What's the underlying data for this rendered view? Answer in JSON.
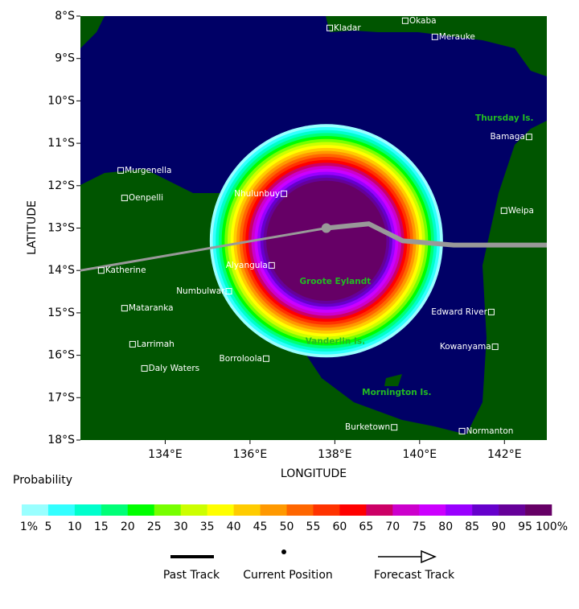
{
  "map": {
    "xlabel": "LONGITUDE",
    "ylabel": "LATITUDE",
    "lon_range": [
      132,
      143
    ],
    "lat_range": [
      8,
      18
    ],
    "xticks": [
      {
        "value": 134,
        "label": "134°E"
      },
      {
        "value": 136,
        "label": "136°E"
      },
      {
        "value": 138,
        "label": "138°E"
      },
      {
        "value": 140,
        "label": "140°E"
      },
      {
        "value": 142,
        "label": "142°E"
      }
    ],
    "yticks": [
      {
        "value": 8,
        "label": "8°S"
      },
      {
        "value": 9,
        "label": "9°S"
      },
      {
        "value": 10,
        "label": "10°S"
      },
      {
        "value": 11,
        "label": "11°S"
      },
      {
        "value": 12,
        "label": "12°S"
      },
      {
        "value": 13,
        "label": "13°S"
      },
      {
        "value": 14,
        "label": "14°S"
      },
      {
        "value": 15,
        "label": "15°S"
      },
      {
        "value": 16,
        "label": "16°S"
      },
      {
        "value": 17,
        "label": "17°S"
      },
      {
        "value": 18,
        "label": "18°S"
      }
    ],
    "places": [
      {
        "name": "Kladar",
        "lon": 137.88,
        "lat": 8.28,
        "side": "right"
      },
      {
        "name": "Okaba",
        "lon": 139.66,
        "lat": 8.11,
        "side": "right"
      },
      {
        "name": "Merauke",
        "lon": 140.36,
        "lat": 8.49,
        "side": "right"
      },
      {
        "name": "Bamaga",
        "lon": 142.58,
        "lat": 10.85,
        "side": "left"
      },
      {
        "name": "Murgenella",
        "lon": 132.95,
        "lat": 11.64,
        "side": "right"
      },
      {
        "name": "Oenpelli",
        "lon": 133.04,
        "lat": 12.29,
        "side": "right"
      },
      {
        "name": "Nhulunbuy",
        "lon": 136.8,
        "lat": 12.19,
        "side": "left"
      },
      {
        "name": "Weipa",
        "lon": 141.99,
        "lat": 12.59,
        "side": "right"
      },
      {
        "name": "Katherine",
        "lon": 132.49,
        "lat": 14.0,
        "side": "right"
      },
      {
        "name": "Alyangula",
        "lon": 136.51,
        "lat": 13.88,
        "side": "left"
      },
      {
        "name": "Numbulwar",
        "lon": 135.5,
        "lat": 14.49,
        "side": "left"
      },
      {
        "name": "Mataranka",
        "lon": 133.04,
        "lat": 14.89,
        "side": "right"
      },
      {
        "name": "Edward River",
        "lon": 141.69,
        "lat": 14.98,
        "side": "left"
      },
      {
        "name": "Larrimah",
        "lon": 133.23,
        "lat": 15.74,
        "side": "right"
      },
      {
        "name": "Daly Waters",
        "lon": 133.51,
        "lat": 16.31,
        "side": "right"
      },
      {
        "name": "Borroloola",
        "lon": 136.38,
        "lat": 16.08,
        "side": "left"
      },
      {
        "name": "Kowanyama",
        "lon": 141.78,
        "lat": 15.8,
        "side": "left"
      },
      {
        "name": "Burketown",
        "lon": 139.4,
        "lat": 17.7,
        "side": "left"
      },
      {
        "name": "Normanton",
        "lon": 141.0,
        "lat": 17.79,
        "side": "right"
      }
    ],
    "islands": [
      {
        "name": "Thursday Is.",
        "lon": 142.0,
        "lat": 10.41
      },
      {
        "name": "Groote Eylandt",
        "lon": 138.01,
        "lat": 14.26
      },
      {
        "name": "Vanderlin Is.",
        "lon": 138.01,
        "lat": 15.68
      },
      {
        "name": "Mornington Is.",
        "lon": 139.46,
        "lat": 16.88
      }
    ],
    "past_track": {
      "lon": [
        132,
        137.8
      ],
      "lat": [
        14.0,
        13.0
      ]
    },
    "current_position": {
      "lon": 137.8,
      "lat": 13.0
    },
    "forecast_track": {
      "lon": [
        137.8,
        138.8,
        139.6,
        140.8,
        143
      ],
      "lat": [
        13.0,
        12.9,
        13.3,
        13.4,
        13.4
      ]
    },
    "probability_center": {
      "lon": 137.8,
      "lat": 13.3
    }
  },
  "legend": {
    "title": "Probability",
    "colors": [
      "#99ffff",
      "#33ffff",
      "#00ffcc",
      "#00ff77",
      "#00ff00",
      "#77ff00",
      "#ccff00",
      "#ffff00",
      "#ffcc00",
      "#ff9900",
      "#ff6600",
      "#ff3300",
      "#ff0000",
      "#cc0066",
      "#cc00cc",
      "#cc00ff",
      "#9900ff",
      "#6600cc",
      "#660099",
      "#660066"
    ],
    "labels": [
      "1%",
      "5",
      "10",
      "15",
      "20",
      "25",
      "30",
      "35",
      "40",
      "45",
      "50",
      "55",
      "60",
      "65",
      "70",
      "75",
      "80",
      "85",
      "90",
      "95",
      "100%"
    ],
    "track_labels": [
      "Past Track",
      "Current Position",
      "Forecast Track"
    ]
  }
}
